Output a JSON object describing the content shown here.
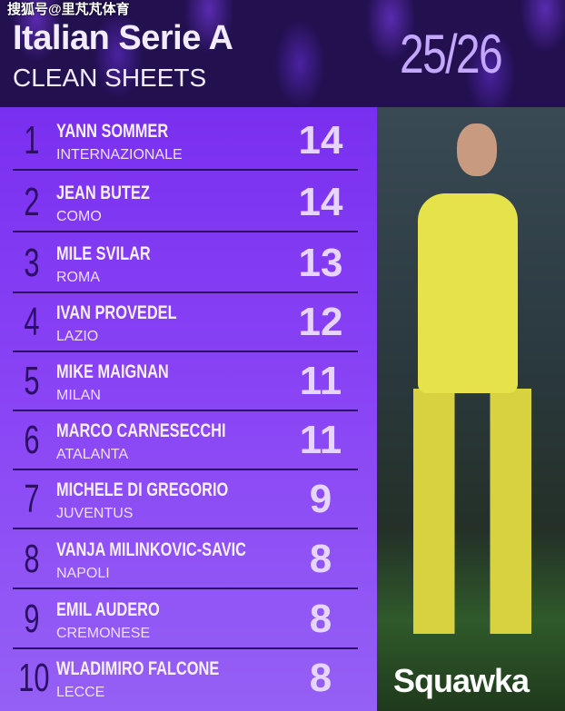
{
  "watermark": "搜狐号@里芃芃体育",
  "header": {
    "title": "Italian Serie A",
    "subtitle": "CLEAN SHEETS",
    "season": "25/26"
  },
  "rows": [
    {
      "rank": "1",
      "name": "YANN SOMMER",
      "team": "INTERNAZIONALE",
      "value": "14"
    },
    {
      "rank": "2",
      "name": "JEAN BUTEZ",
      "team": "COMO",
      "value": "14"
    },
    {
      "rank": "3",
      "name": "MILE SVILAR",
      "team": "ROMA",
      "value": "13"
    },
    {
      "rank": "4",
      "name": "IVAN PROVEDEL",
      "team": "LAZIO",
      "value": "12"
    },
    {
      "rank": "5",
      "name": "MIKE MAIGNAN",
      "team": "MILAN",
      "value": "11"
    },
    {
      "rank": "6",
      "name": "MARCO CARNESECCHI",
      "team": "ATALANTA",
      "value": "11"
    },
    {
      "rank": "7",
      "name": "MICHELE DI GREGORIO",
      "team": "JUVENTUS",
      "value": "9"
    },
    {
      "rank": "8",
      "name": "VANJA MILINKOVIC-SAVIC",
      "team": "NAPOLI",
      "value": "8"
    },
    {
      "rank": "9",
      "name": "EMIL AUDERO",
      "team": "CREMONESE",
      "value": "8"
    },
    {
      "rank": "10",
      "name": "WLADIMIRO FALCONE",
      "team": "LECCE",
      "value": "8"
    }
  ],
  "brand": "Squawka",
  "colors": {
    "header_bg": "#22104f",
    "table_purple": "#8a45f5",
    "rank": "#2c0f66",
    "value": "#e6d6ff"
  }
}
